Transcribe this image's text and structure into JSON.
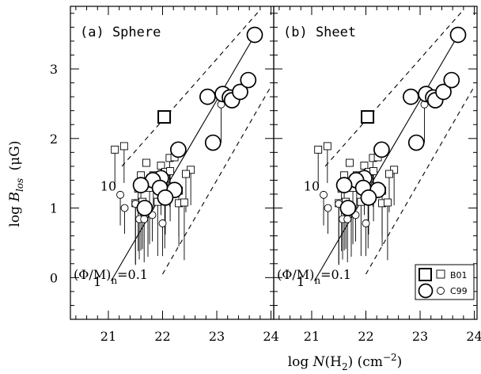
{
  "chart_data": [
    {
      "panel_label": "(a) Sphere",
      "type": "scatter",
      "xlim": [
        20.3,
        24.05
      ],
      "ylim": [
        -0.6,
        3.9
      ],
      "reference_lines": [
        {
          "style": "solid",
          "label": "1",
          "points": [
            [
              21.05,
              -0.05
            ],
            [
              23.75,
              3.55
            ]
          ]
        },
        {
          "style": "dashed",
          "label": "10",
          "points": [
            [
              21.25,
              1.6
            ],
            [
              23.8,
              3.85
            ]
          ]
        },
        {
          "style": "dashed",
          "label": "(Φ/M)n=0.1",
          "points": [
            [
              22.0,
              0.05
            ],
            [
              24.0,
              2.75
            ]
          ]
        }
      ]
    },
    {
      "panel_label": "(b) Sheet",
      "type": "scatter",
      "xlim": [
        20.3,
        24.05
      ],
      "ylim": [
        -0.6,
        3.9
      ],
      "reference_lines": [
        {
          "style": "solid",
          "label": "1",
          "points": [
            [
              21.05,
              -0.05
            ],
            [
              23.75,
              3.55
            ]
          ]
        },
        {
          "style": "dashed",
          "label": "10",
          "points": [
            [
              21.25,
              1.6
            ],
            [
              23.8,
              3.85
            ]
          ]
        },
        {
          "style": "dashed",
          "label": "(Φ/M)n=0.1",
          "points": [
            [
              22.0,
              0.05
            ],
            [
              24.0,
              2.75
            ]
          ]
        }
      ]
    }
  ],
  "axes": {
    "xlabel": "log N(H2) (cm−2)",
    "ylabel": "log Blos (μG)",
    "xticks": [
      21,
      22,
      23,
      24
    ],
    "yticks": [
      0,
      1,
      2,
      3
    ]
  },
  "labels": {
    "panel_a": "(a) Sphere",
    "panel_b": "(b) Sheet",
    "line_ratio_1": "1",
    "line_ratio_10": "10",
    "ratio_prefix": "(Φ/M)",
    "ratio_sub": "n",
    "ratio_value": "=0.1",
    "x_label_main": "log",
    "x_label_var": "N",
    "x_label_mol": "(H",
    "x_label_mol_sub": "2",
    "x_label_unit": ") (cm",
    "x_label_unit_sup": "−2",
    "x_label_close": ")",
    "y_label_main": "log",
    "y_label_var": "B",
    "y_label_sub": "los",
    "y_label_unit": "(μG)"
  },
  "legend": {
    "position": "bottom-right of panel (b)",
    "entries": [
      {
        "label": "B01",
        "marker": "square"
      },
      {
        "label": "C99",
        "marker": "circle"
      }
    ]
  },
  "series": [
    {
      "name": "B01",
      "marker": "square",
      "detections": [
        {
          "x": 22.03,
          "y": 2.31,
          "big": true
        },
        {
          "x": 21.12,
          "y": 1.84
        },
        {
          "x": 21.29,
          "y": 1.89
        },
        {
          "x": 21.7,
          "y": 1.65
        },
        {
          "x": 21.97,
          "y": 1.61
        },
        {
          "x": 22.13,
          "y": 1.72
        },
        {
          "x": 22.22,
          "y": 1.73
        },
        {
          "x": 22.52,
          "y": 1.55
        },
        {
          "x": 21.6,
          "y": 1.47
        },
        {
          "x": 21.83,
          "y": 1.47
        },
        {
          "x": 22.05,
          "y": 1.52
        },
        {
          "x": 22.14,
          "y": 1.53
        },
        {
          "x": 22.43,
          "y": 1.49
        },
        {
          "x": 21.55,
          "y": 1.28
        },
        {
          "x": 21.76,
          "y": 1.29
        },
        {
          "x": 22.3,
          "y": 1.25
        },
        {
          "x": 21.5,
          "y": 1.07
        },
        {
          "x": 21.63,
          "y": 1.09
        },
        {
          "x": 21.91,
          "y": 1.09
        },
        {
          "x": 22.04,
          "y": 1.1
        },
        {
          "x": 22.3,
          "y": 1.07
        },
        {
          "x": 22.4,
          "y": 1.08
        }
      ],
      "upper_limits": [
        {
          "x": 21.12,
          "y": 1.84,
          "bottom": 1.32
        },
        {
          "x": 21.29,
          "y": 1.89,
          "bottom": 1.36
        },
        {
          "x": 21.97,
          "y": 1.61,
          "bottom": 0.9
        },
        {
          "x": 22.13,
          "y": 1.72,
          "bottom": 1.02
        },
        {
          "x": 22.52,
          "y": 1.55,
          "bottom": 1.04
        },
        {
          "x": 21.6,
          "y": 1.47,
          "bottom": 0.78
        },
        {
          "x": 21.83,
          "y": 1.47,
          "bottom": 0.98
        },
        {
          "x": 22.05,
          "y": 1.52,
          "bottom": 0.62
        },
        {
          "x": 22.14,
          "y": 1.53,
          "bottom": 0.81
        },
        {
          "x": 22.43,
          "y": 1.49,
          "bottom": 0.94
        },
        {
          "x": 21.55,
          "y": 1.28,
          "bottom": 0.38
        },
        {
          "x": 21.76,
          "y": 1.29,
          "bottom": 0.48
        },
        {
          "x": 22.3,
          "y": 1.25,
          "bottom": 0.59
        },
        {
          "x": 21.5,
          "y": 1.07,
          "bottom": 0.2
        },
        {
          "x": 21.63,
          "y": 1.09,
          "bottom": 0.41
        },
        {
          "x": 21.91,
          "y": 1.09,
          "bottom": 0.31
        },
        {
          "x": 22.04,
          "y": 1.1,
          "bottom": 0.42
        },
        {
          "x": 22.3,
          "y": 1.07,
          "bottom": 0.45
        },
        {
          "x": 22.4,
          "y": 1.08,
          "bottom": 0.25
        }
      ]
    },
    {
      "name": "C99",
      "marker": "circle",
      "detections_large": [
        {
          "x": 23.7,
          "y": 3.49
        },
        {
          "x": 22.83,
          "y": 2.6
        },
        {
          "x": 23.11,
          "y": 2.64
        },
        {
          "x": 23.24,
          "y": 2.59
        },
        {
          "x": 23.28,
          "y": 2.55
        },
        {
          "x": 23.43,
          "y": 2.67
        },
        {
          "x": 23.58,
          "y": 2.84
        },
        {
          "x": 22.93,
          "y": 1.94
        },
        {
          "x": 22.29,
          "y": 1.84
        },
        {
          "x": 21.97,
          "y": 1.43
        },
        {
          "x": 21.82,
          "y": 1.4
        },
        {
          "x": 21.6,
          "y": 1.33
        },
        {
          "x": 21.95,
          "y": 1.29
        },
        {
          "x": 22.22,
          "y": 1.26
        },
        {
          "x": 22.05,
          "y": 1.15
        },
        {
          "x": 21.67,
          "y": 1.0
        }
      ],
      "detections_small": [
        {
          "x": 21.22,
          "y": 1.19
        },
        {
          "x": 21.3,
          "y": 1.0
        },
        {
          "x": 21.5,
          "y": 1.06
        },
        {
          "x": 21.6,
          "y": 0.97
        },
        {
          "x": 21.73,
          "y": 0.96
        },
        {
          "x": 21.57,
          "y": 0.84
        },
        {
          "x": 21.66,
          "y": 0.84
        },
        {
          "x": 21.81,
          "y": 0.9
        },
        {
          "x": 22.0,
          "y": 0.78
        },
        {
          "x": 23.08,
          "y": 2.49
        }
      ],
      "upper_limits": [
        {
          "x": 21.22,
          "y": 1.19,
          "bottom": 0.75
        },
        {
          "x": 21.3,
          "y": 1.0,
          "bottom": 0.63
        },
        {
          "x": 21.5,
          "y": 1.06,
          "bottom": 0.18
        },
        {
          "x": 21.6,
          "y": 0.97,
          "bottom": 0.39
        },
        {
          "x": 21.73,
          "y": 0.96,
          "bottom": 0.3
        },
        {
          "x": 21.57,
          "y": 0.84,
          "bottom": 0.26
        },
        {
          "x": 21.66,
          "y": 0.84,
          "bottom": 0.22
        },
        {
          "x": 21.81,
          "y": 0.9,
          "bottom": 0.52
        },
        {
          "x": 22.0,
          "y": 0.78,
          "bottom": 0.31
        },
        {
          "x": 23.08,
          "y": 2.49,
          "bottom": 1.94
        }
      ]
    }
  ]
}
